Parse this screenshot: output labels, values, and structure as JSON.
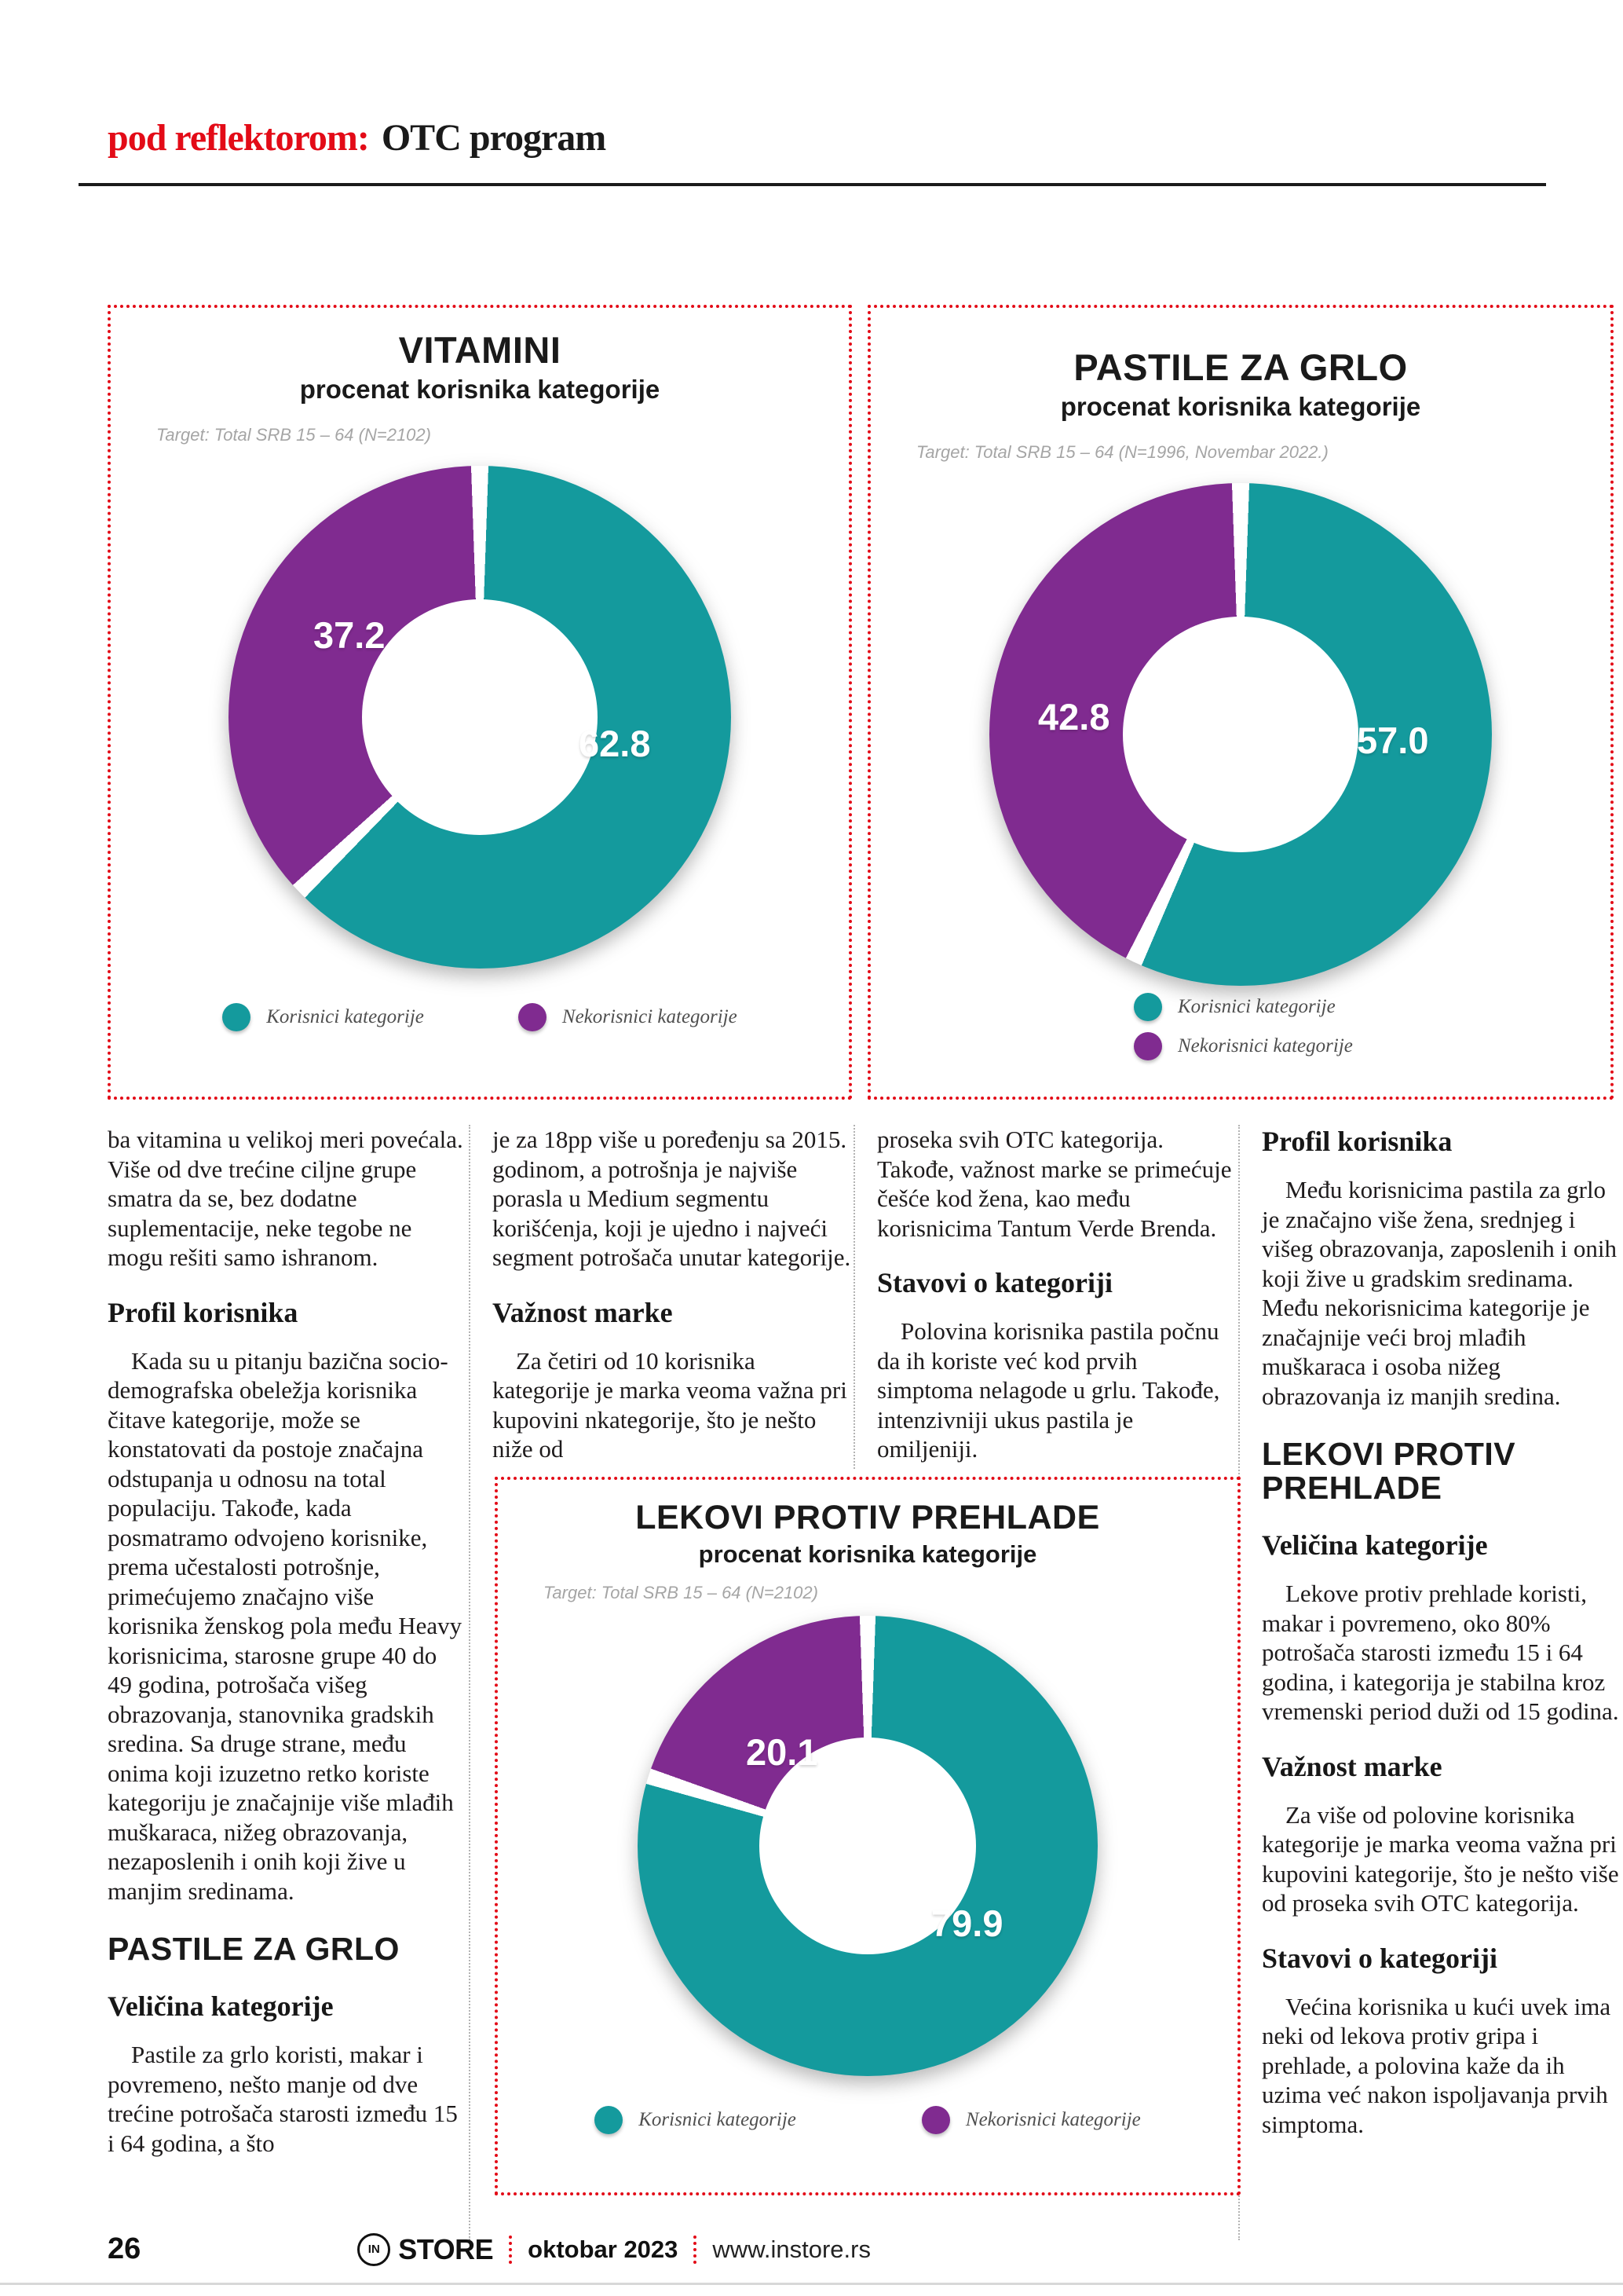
{
  "header": {
    "kicker_red": "pod reflektorom:",
    "kicker_black": "OTC program"
  },
  "colors": {
    "accent_red": "#e30b17",
    "teal": "#149a9d",
    "purple": "#802b90",
    "body_text": "#1e1b1c"
  },
  "chart_data": [
    {
      "type": "pie",
      "donut": true,
      "title": "VITAMINI",
      "subtitle": "procenat korisnika kategorije",
      "target": "Target: Total SRB 15 – 64 (N=2102)",
      "legend_position": "bottom-row",
      "series": [
        {
          "name": "Korisnici kategorije",
          "value": 62.8,
          "label": "62.8",
          "color": "#149a9d"
        },
        {
          "name": "Nekorisnici kategorije",
          "value": 37.2,
          "label": "37.2",
          "color": "#802b90"
        }
      ]
    },
    {
      "type": "pie",
      "donut": true,
      "title": "PASTILE ZA GRLO",
      "subtitle": "procenat korisnika kategorije",
      "target": "Target: Total SRB 15 – 64 (N=1996, Novembar 2022.)",
      "legend_position": "bottom-stacked",
      "series": [
        {
          "name": "Korisnici kategorije",
          "value": 57.0,
          "label": "57.0",
          "color": "#149a9d"
        },
        {
          "name": "Nekorisnici kategorije",
          "value": 42.8,
          "label": "42.8",
          "color": "#802b90"
        }
      ]
    },
    {
      "type": "pie",
      "donut": true,
      "title": "LEKOVI PROTIV PREHLADE",
      "subtitle": "procenat korisnika kategorije",
      "target": "Target: Total SRB 15 – 64 (N=2102)",
      "legend_position": "bottom-row",
      "series": [
        {
          "name": "Korisnici kategorije",
          "value": 79.9,
          "label": "79.9",
          "color": "#149a9d"
        },
        {
          "name": "Nekorisnici kategorije",
          "value": 20.1,
          "label": "20.1",
          "color": "#802b90"
        }
      ]
    }
  ],
  "columns": [
    {
      "blocks": [
        {
          "type": "p",
          "text": "ba vitamina u velikoj meri povećala. Više od dve trećine ciljne grupe smatra da se, bez dodatne suplementacije, neke tegobe ne mogu rešiti samo ishranom."
        },
        {
          "type": "h-serif",
          "text": "Profil korisnika"
        },
        {
          "type": "p-indent",
          "text": "Kada su u pitanju bazična socio-demografska obeležja korisnika čitave kategorije, može se konstatovati da postoje značajna odstupanja u odnosu na total populaciju. Takođe, kada posmatramo odvojeno korisnike, prema učestalosti potrošnje, primećujemo značajno više korisnika ženskog pola među Heavy korisnicima, starosne grupe 40 do 49 godina, potrošača višeg obrazovanja, stanovnika gradskih sredina. Sa druge strane, među onima koji izuzetno retko koriste kategoriju je značajnije više mlađih muškaraca, nižeg obrazovanja, nezaposlenih i onih koji žive u manjim sredinama."
        },
        {
          "type": "h-sans",
          "text": "PASTILE ZA GRLO"
        },
        {
          "type": "h-serif",
          "text": "Veličina kategorije"
        },
        {
          "type": "p-indent",
          "text": "Pastile za grlo koristi, makar i povremeno, nešto manje od dve trećine potrošača starosti između 15 i 64 godina, a što"
        }
      ]
    },
    {
      "blocks": [
        {
          "type": "p",
          "text": "je za 18pp više u poređenju sa 2015. godinom, a potrošnja je najviše porasla u Medium segmentu korišćenja, koji je ujedno i najveći segment potrošača unutar kategorije."
        },
        {
          "type": "h-serif",
          "text": "Važnost marke"
        },
        {
          "type": "p-indent",
          "text": "Za četiri od 10 korisnika kategorije je marka veoma važna pri kupovini nkategorije, što je nešto niže od"
        }
      ]
    },
    {
      "blocks": [
        {
          "type": "p",
          "text": "proseka svih OTC kategorija. Takođe, važnost marke se primećuje češće kod žena, kao među korisnicima Tantum Verde Brenda."
        },
        {
          "type": "h-serif",
          "text": "Stavovi o kategoriji"
        },
        {
          "type": "p-indent",
          "text": "Polovina korisnika pastila počnu da ih koriste već kod prvih simptoma nelagode u grlu. Takođe, intenzivniji ukus pastila je omiljeniji."
        }
      ]
    },
    {
      "blocks": [
        {
          "type": "h-serif",
          "text": "Profil korisnika"
        },
        {
          "type": "p-indent",
          "text": "Među korisnicima pastila za grlo je značajno više žena, srednjeg i višeg obrazovanja, zaposlenih i onih koji žive u gradskim sredinama. Među nekorisnicima kategorije je značajnije veći broj mlađih muškaraca i osoba nižeg obrazovanja iz manjih sredina."
        },
        {
          "type": "h-sans",
          "text": "LEKOVI PROTIV PREHLADE"
        },
        {
          "type": "h-serif",
          "text": "Veličina kategorije"
        },
        {
          "type": "p-indent",
          "text": "Lekove protiv prehlade koristi, makar i povremeno, oko 80% potrošača starosti između 15 i 64 godina, i kategorija je stabilna kroz vremenski period duži od 15 godina."
        },
        {
          "type": "h-serif",
          "text": "Važnost marke"
        },
        {
          "type": "p-indent",
          "text": "Za više od polovine korisnika kategorije je marka veoma važna pri kupovini kategorije, što je nešto više od proseka svih OTC kategorija."
        },
        {
          "type": "h-serif",
          "text": "Stavovi o kategoriji"
        },
        {
          "type": "p-indent",
          "text": "Većina korisnika u kući uvek ima neki od lekova protiv gripa i prehlade, a polovina kaže da ih uzima već nakon ispoljavanja prvih simptoma."
        }
      ]
    }
  ],
  "footer": {
    "page_number": "26",
    "logo_circle": "IN",
    "logo_text": "STORE",
    "issue": "oktobar 2023",
    "website": "www.instore.rs"
  }
}
